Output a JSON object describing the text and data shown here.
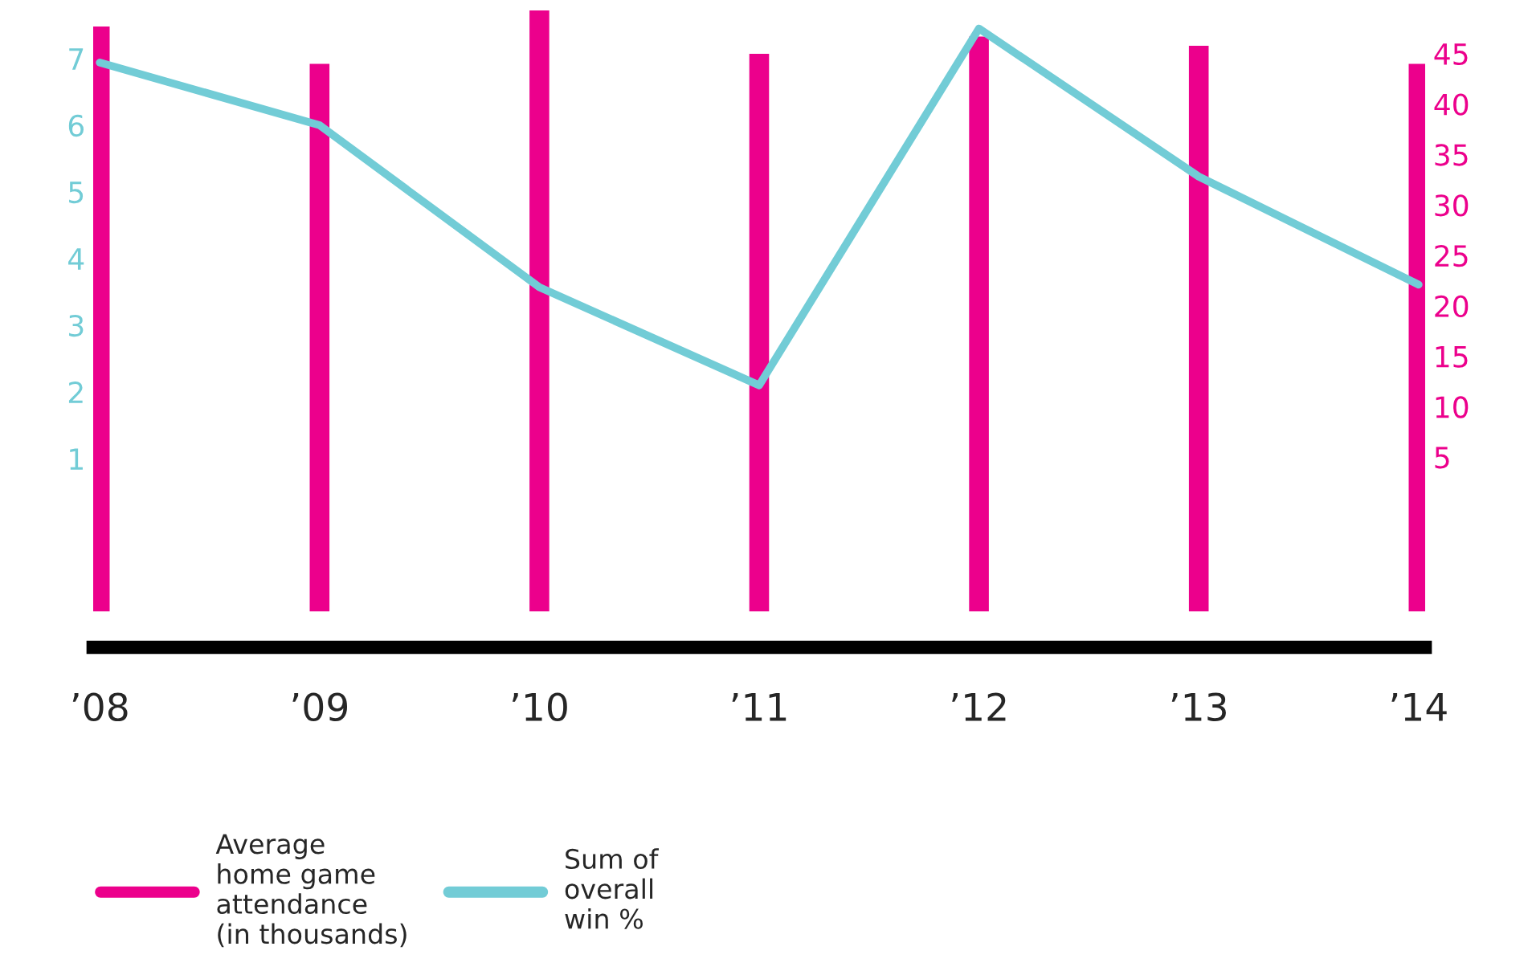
{
  "chart_data": {
    "type": "bar",
    "categories": [
      "’08",
      "’09",
      "’10",
      "’11",
      "’12",
      "’13",
      "’14"
    ],
    "series": [
      {
        "name": "Average\nhome game\nattendance\n(in thousands)",
        "axis": "y2",
        "color": "#ec008c",
        "base": [
          -10.4,
          -10.4,
          -10.4,
          -10.4,
          -10.4,
          -10.4,
          -10.4
        ],
        "values": [
          58.2,
          54.5,
          59.8,
          55.5,
          57.2,
          56.3,
          54.5
        ]
      },
      {
        "name": "Sum of\noverall\nwin %",
        "type": "line",
        "axis": "y",
        "color": "#72ccd6",
        "values": [
          6.94,
          6.0,
          3.57,
          2.1,
          7.45,
          5.23,
          3.61
        ]
      }
    ],
    "ylim": [
      -1.83,
      7.83
    ],
    "yticks": [
      1,
      2,
      3,
      4,
      5,
      6,
      7
    ],
    "y2lim": [
      -13.85,
      50
    ],
    "y2ticks": [
      5,
      10,
      15,
      20,
      25,
      30,
      35,
      40,
      45
    ],
    "grid": false,
    "legend": "bottom left"
  }
}
